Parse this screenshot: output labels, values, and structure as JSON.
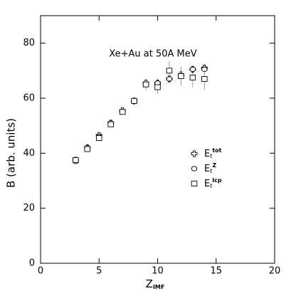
{
  "chart_data": {
    "type": "scatter",
    "annotation": "Xe+Au at 50A MeV",
    "xlabel": "Z",
    "xlabel_sub": "IMF",
    "ylabel": "B (arb. units)",
    "xlim": [
      0,
      20
    ],
    "xticks": [
      0,
      5,
      10,
      15,
      20
    ],
    "ylim": [
      0,
      90
    ],
    "yticks": [
      0,
      20,
      40,
      60,
      80
    ],
    "x": [
      3,
      4,
      5,
      6,
      7,
      8,
      9,
      10,
      11,
      12,
      13,
      14
    ],
    "series": [
      {
        "name": "E",
        "subscript": "t",
        "superscript": "tot",
        "marker": "plus",
        "color": "#000000",
        "values": [
          37.5,
          42,
          46.5,
          51,
          55.5,
          59,
          65.5,
          65.5,
          67,
          68.5,
          70.5,
          71
        ],
        "errors": [
          0.8,
          0.8,
          0.8,
          0.8,
          1,
          1,
          1.5,
          1.5,
          1.5,
          2,
          1.5,
          1.5
        ]
      },
      {
        "name": "E",
        "subscript": "t",
        "superscript": "Z",
        "marker": "circle",
        "color": "#000000",
        "values": [
          37,
          42,
          46,
          51,
          55,
          59,
          65,
          65.5,
          67,
          68,
          70.5,
          70.5
        ],
        "errors": [
          0.8,
          0.8,
          0.8,
          0.8,
          1,
          1,
          1.5,
          1.5,
          1.5,
          2,
          1.5,
          1.5
        ]
      },
      {
        "name": "E",
        "subscript": "t",
        "superscript": "lcp",
        "marker": "square",
        "color": "#000000",
        "values": [
          37.5,
          41.5,
          45.5,
          50.5,
          55,
          59,
          65,
          64,
          70,
          68,
          67.5,
          67
        ],
        "errors": [
          0.8,
          0.8,
          1,
          1,
          1,
          1.5,
          2,
          2.5,
          3.5,
          3.5,
          3.5,
          4
        ]
      }
    ]
  }
}
